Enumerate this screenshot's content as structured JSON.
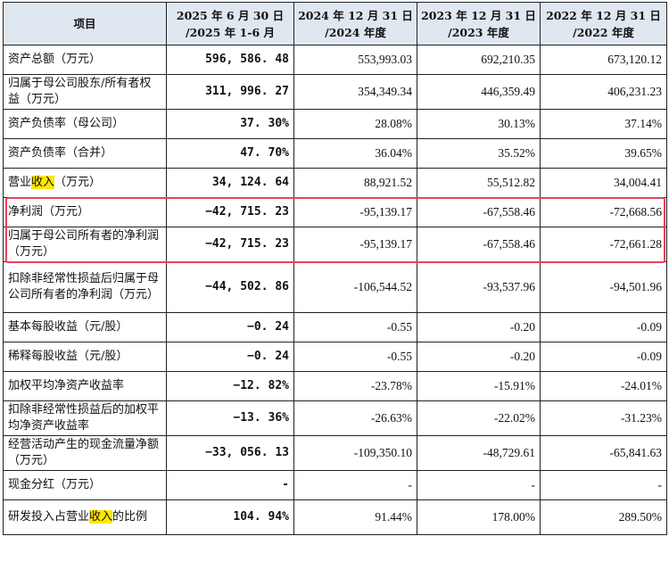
{
  "table": {
    "headers": [
      [
        "项目"
      ],
      [
        "2025 年 6 月 30 日",
        "/2025 年 1-6 月"
      ],
      [
        "2024 年 12 月 31 日",
        "/2024 年度"
      ],
      [
        "2023 年 12 月 31 日",
        "/2023 年度"
      ],
      [
        "2022 年 12 月 31 日",
        "/2022 年度"
      ]
    ],
    "rows": [
      {
        "label": "资产总额（万元）",
        "values": [
          "596, 586. 48",
          "553,993.03",
          "692,210.35",
          "673,120.12"
        ]
      },
      {
        "label": "归属于母公司股东/所有者权益（万元）",
        "values": [
          "311, 996. 27",
          "354,349.34",
          "446,359.49",
          "406,231.23"
        ]
      },
      {
        "label": "资产负债率（母公司）",
        "values": [
          "37. 30%",
          "28.08%",
          "30.13%",
          "37.14%"
        ]
      },
      {
        "label": "资产负债率（合并）",
        "values": [
          "47. 70%",
          "36.04%",
          "35.52%",
          "39.65%"
        ]
      },
      {
        "label_parts": [
          "营业",
          "收入",
          "（万元）"
        ],
        "values": [
          "34, 124. 64",
          "88,921.52",
          "55,512.82",
          "34,004.41"
        ]
      },
      {
        "label": "净利润（万元）",
        "values": [
          "−42, 715. 23",
          "-95,139.17",
          "-67,558.46",
          "-72,668.56"
        ]
      },
      {
        "label": "归属于母公司所有者的净利润（万元）",
        "values": [
          "−42, 715. 23",
          "-95,139.17",
          "-67,558.46",
          "-72,661.28"
        ]
      },
      {
        "label": "扣除非经常性损益后归属于母公司所有者的净利润（万元）",
        "values": [
          "−44, 502. 86",
          "-106,544.52",
          "-93,537.96",
          "-94,501.96"
        ]
      },
      {
        "label": "基本每股收益（元/股）",
        "values": [
          "−0. 24",
          "-0.55",
          "-0.20",
          "-0.09"
        ]
      },
      {
        "label": "稀释每股收益（元/股）",
        "values": [
          "−0. 24",
          "-0.55",
          "-0.20",
          "-0.09"
        ]
      },
      {
        "label": "加权平均净资产收益率",
        "values": [
          "−12. 82%",
          "-23.78%",
          "-15.91%",
          "-24.01%"
        ]
      },
      {
        "label": "扣除非经常性损益后的加权平均净资产收益率",
        "values": [
          "−13. 36%",
          "-26.63%",
          "-22.02%",
          "-31.23%"
        ]
      },
      {
        "label": "经营活动产生的现金流量净额（万元）",
        "values": [
          "−33, 056. 13",
          "-109,350.10",
          "-48,729.61",
          "-65,841.63"
        ]
      },
      {
        "label": "现金分红（万元）",
        "values": [
          "-",
          "-",
          "-",
          "-"
        ]
      },
      {
        "label_parts": [
          "研发投入占营业",
          "收入",
          "的比例"
        ],
        "values": [
          "104. 94%",
          "91.44%",
          "178.00%",
          "289.50%"
        ]
      }
    ]
  },
  "colors": {
    "header_bg": "#dfe7f1",
    "highlight": "#ffe600",
    "box": "#e9425a"
  }
}
